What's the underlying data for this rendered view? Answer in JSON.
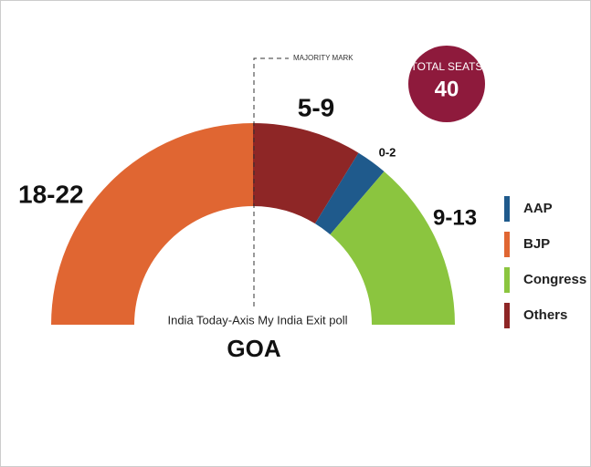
{
  "chart_data": {
    "type": "semicircle",
    "title": "GOA",
    "subtitle": "India Today-Axis My India Exit poll",
    "annotation": "MAJORITY MARK",
    "total_label": "TOTAL SEATS",
    "total": 40,
    "categories": [
      "BJP",
      "Others",
      "AAP",
      "Congress"
    ],
    "values": [
      20,
      7,
      2,
      11
    ],
    "value_labels": [
      "18-22",
      "5-9",
      "0-2",
      "9-13"
    ],
    "colors": [
      "#e06632",
      "#8e2626",
      "#1f5a8c",
      "#8bc53f"
    ]
  }
}
